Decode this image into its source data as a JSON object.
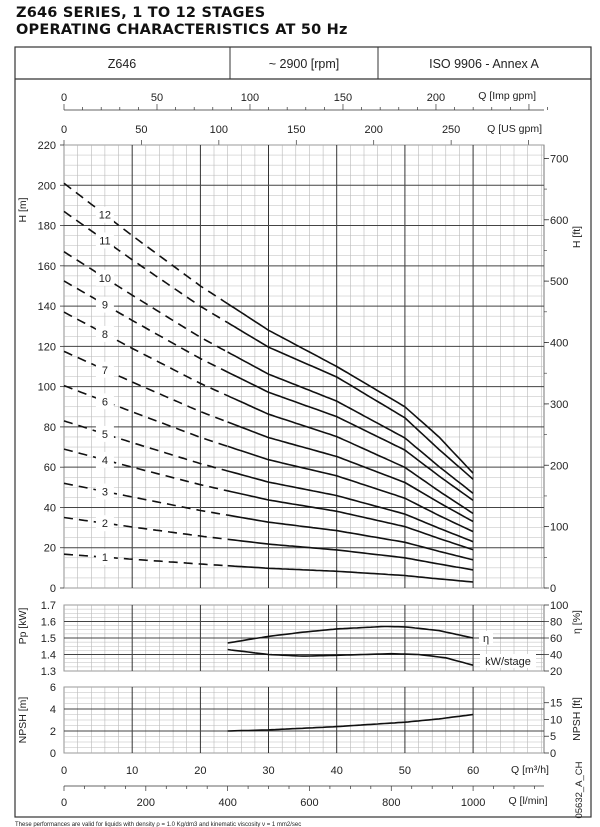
{
  "header": {
    "title_line1": "Z646 SERIES, 1 TO 12 STAGES",
    "title_line2": "OPERATING CHARACTERISTICS AT 50 Hz",
    "model": "Z646",
    "speed": "~ 2900 [rpm]",
    "standard": "ISO 9906 - Annex A"
  },
  "footnote": "These performances are valid for liquids with density ρ = 1.0 Kg/dm3 and kinematic viscosity ν = 1 mm2/sec",
  "drawing_code": "05632_A_CH",
  "chart_data": {
    "type": "line",
    "x": [
      0,
      10,
      20,
      30,
      40,
      50,
      55,
      60
    ],
    "xlim": [
      0,
      70
    ],
    "dashed_below_q": 24,
    "x_axes": {
      "m3h": {
        "label": "Q [m³/h]",
        "ticks": [
          0,
          10,
          20,
          30,
          40,
          50,
          60
        ]
      },
      "lmin": {
        "label": "Q [l/min]",
        "ticks": [
          0,
          200,
          400,
          600,
          800,
          1000
        ]
      },
      "imp_gpm": {
        "label": "Q [Imp gpm]",
        "ticks": [
          0,
          50,
          100,
          150,
          200
        ]
      },
      "us_gpm": {
        "label": "Q [US gpm]",
        "ticks": [
          0,
          50,
          100,
          150,
          200,
          250
        ]
      }
    },
    "head": {
      "ylabel": "H [m]",
      "ylabel_right": "H [ft]",
      "ylim": [
        0,
        220
      ],
      "yticks": [
        0,
        20,
        40,
        60,
        80,
        100,
        120,
        140,
        160,
        180,
        200,
        220
      ],
      "ft_ticks": [
        0,
        100,
        200,
        300,
        400,
        500,
        600,
        700
      ],
      "series": [
        {
          "name": "1",
          "values": [
            16.8,
            14.3,
            11.9,
            9.8,
            8.3,
            6.2,
            4.5,
            3.0
          ]
        },
        {
          "name": "2",
          "values": [
            35,
            30.3,
            25.8,
            21.8,
            18.9,
            15.0,
            11.9,
            9
          ]
        },
        {
          "name": "3",
          "values": [
            52,
            45.2,
            38.5,
            32.7,
            28.5,
            22.7,
            18.2,
            14
          ]
        },
        {
          "name": "4",
          "values": [
            69,
            60,
            51.3,
            43.7,
            38.1,
            30.5,
            24.6,
            19
          ]
        },
        {
          "name": "5",
          "values": [
            83,
            72.2,
            61.8,
            52.6,
            45.9,
            36.7,
            29.7,
            23
          ]
        },
        {
          "name": "6",
          "values": [
            100.5,
            87.5,
            74.8,
            63.7,
            55.7,
            44.6,
            36.0,
            28
          ]
        },
        {
          "name": "7",
          "values": [
            117.5,
            102.3,
            87.6,
            74.7,
            65.3,
            52.4,
            42.4,
            33
          ]
        },
        {
          "name": "8",
          "values": [
            137,
            119,
            101.6,
            86.3,
            75.2,
            59.9,
            48.1,
            37
          ]
        },
        {
          "name": "9",
          "values": [
            152.5,
            132.9,
            113.9,
            97.2,
            85.1,
            68.5,
            55.6,
            43.5
          ]
        },
        {
          "name": "10",
          "values": [
            167,
            145.4,
            124.5,
            106.2,
            92.8,
            74.5,
            60.3,
            47
          ]
        },
        {
          "name": "11",
          "values": [
            187,
            163,
            139.9,
            119.6,
            104.8,
            84.5,
            68.8,
            54
          ]
        },
        {
          "name": "12",
          "values": [
            201,
            175,
            150,
            128,
            110,
            90,
            75,
            57
          ]
        }
      ]
    },
    "power": {
      "ylabel": "Pp [kW]",
      "ylabel_right": "η [%]",
      "ylim": [
        1.3,
        1.7
      ],
      "yticks": [
        1.3,
        1.4,
        1.5,
        1.6,
        1.7
      ],
      "eff_ticks": [
        20,
        40,
        60,
        80,
        100
      ],
      "efficiency": {
        "name": "η",
        "x": [
          24,
          30,
          35,
          40,
          47,
          50,
          55,
          60
        ],
        "values": [
          54,
          62,
          67,
          71,
          74,
          73.5,
          69,
          60
        ]
      },
      "kw_stage": {
        "name": "kW/stage",
        "x": [
          24,
          30,
          35,
          40,
          48,
          52,
          56,
          60
        ],
        "values": [
          1.43,
          1.4,
          1.39,
          1.395,
          1.405,
          1.4,
          1.38,
          1.335
        ]
      }
    },
    "npsh": {
      "ylabel": "NPSH [m]",
      "ylabel_right": "NPSH [ft]",
      "ylim": [
        0,
        6
      ],
      "yticks": [
        0,
        2,
        4,
        6
      ],
      "ft_ticks": [
        0,
        5,
        10,
        15
      ],
      "series": {
        "name": "NPSH",
        "x": [
          24,
          30,
          40,
          50,
          55,
          60
        ],
        "values": [
          2.0,
          2.1,
          2.4,
          2.8,
          3.1,
          3.5
        ]
      }
    }
  }
}
